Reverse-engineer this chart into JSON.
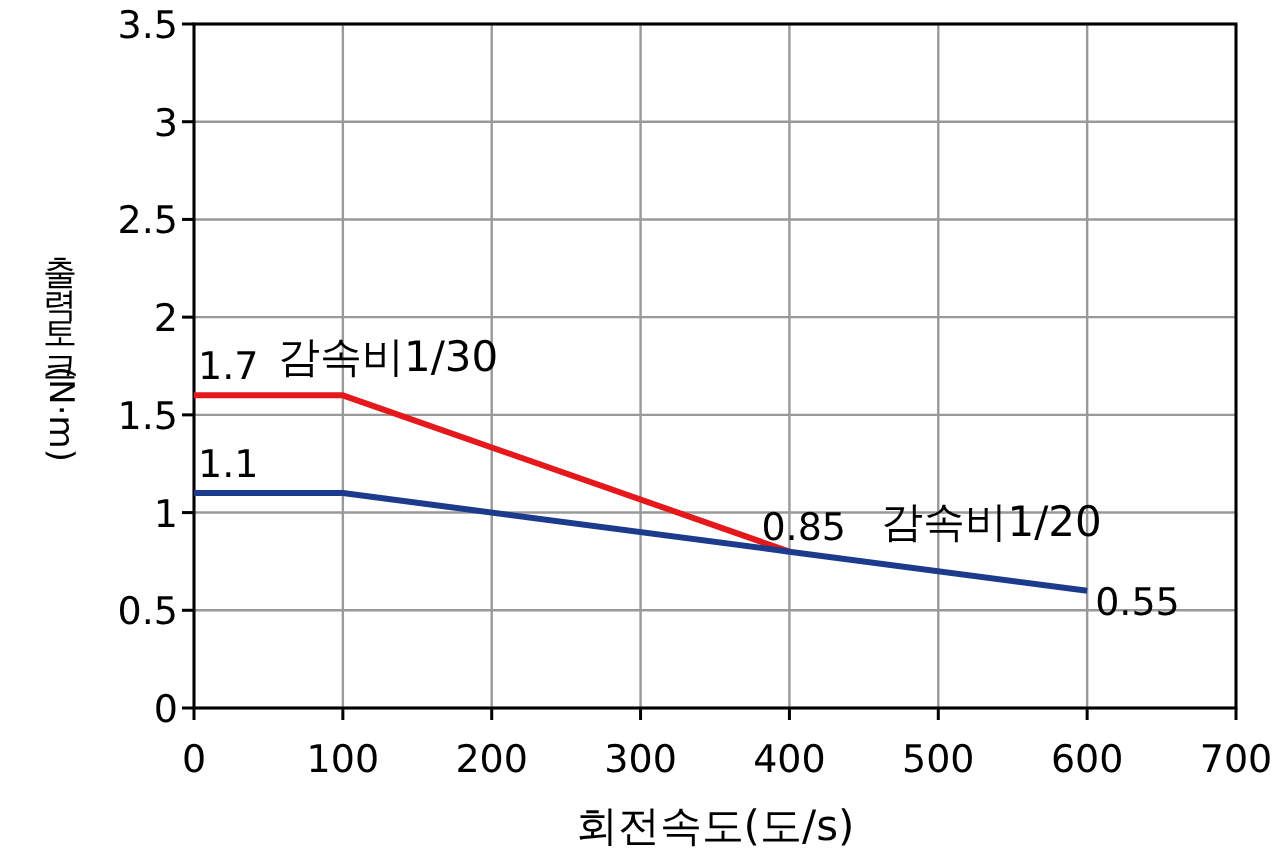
{
  "chart_data": {
    "type": "line",
    "xlabel": "회전속도(도/s)",
    "ylabel": "출력토크(N·m)",
    "xlim": [
      0,
      700
    ],
    "xticks": [
      0,
      100,
      200,
      300,
      400,
      500,
      600,
      700
    ],
    "ylim": [
      0,
      3.5
    ],
    "yticks": [
      0,
      0.5,
      1,
      1.5,
      2,
      2.5,
      3,
      3.5
    ],
    "grid": true,
    "legend": false,
    "marker": "none",
    "line_style": "solid",
    "series": [
      {
        "name": "감속비1/30",
        "color": "#e5191c",
        "x": [
          0,
          100,
          400
        ],
        "values": [
          1.6,
          1.6,
          0.8
        ]
      },
      {
        "name": "감속비1/20",
        "color": "#1d3b8c",
        "x": [
          0,
          100,
          400,
          600
        ],
        "values": [
          1.1,
          1.1,
          0.8,
          0.6
        ]
      }
    ],
    "annotations": [
      {
        "text": "1.7",
        "x": 0,
        "y": 1.6
      },
      {
        "text": "1.1",
        "x": 0,
        "y": 1.1
      },
      {
        "text": "0.85",
        "x": 400,
        "y": 0.8
      },
      {
        "text": "0.55",
        "x": 600,
        "y": 0.6
      }
    ]
  }
}
